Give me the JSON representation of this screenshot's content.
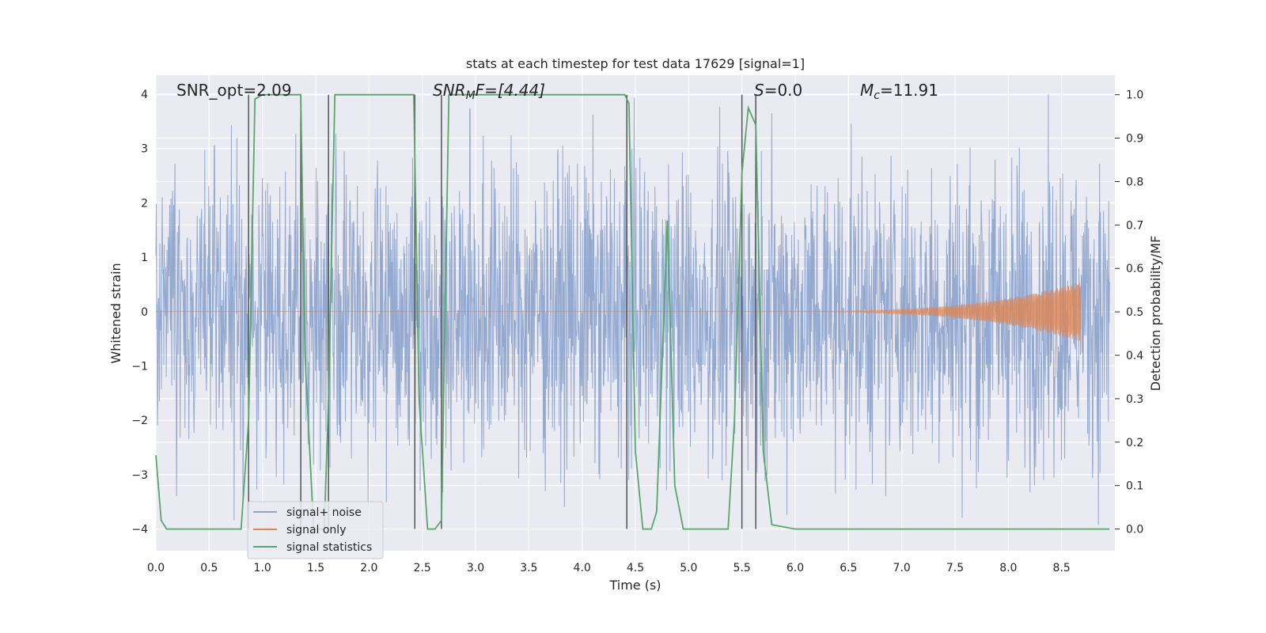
{
  "chart_data": {
    "type": "line",
    "title": "stats at each timestep for test data 17629 [signal=1]",
    "xlabel": "Time (s)",
    "ylabel_left": "Whitened strain",
    "ylabel_right": "Detection probability/MF",
    "xlim": [
      0.0,
      9.0
    ],
    "ylim_left": [
      -4.4,
      4.35
    ],
    "ylim_right": [
      -0.05,
      1.045
    ],
    "grid": true,
    "legend_position": "lower-left",
    "x_ticks": [
      "0.0",
      "0.5",
      "1.0",
      "1.5",
      "2.0",
      "2.5",
      "3.0",
      "3.5",
      "4.0",
      "4.5",
      "5.0",
      "5.5",
      "6.0",
      "6.5",
      "7.0",
      "7.5",
      "8.0",
      "8.5"
    ],
    "y_left_ticks": [
      "4",
      "3",
      "2",
      "1",
      "0",
      "−1",
      "−2",
      "−3",
      "−4"
    ],
    "y_right_ticks": [
      "1.0",
      "0.9",
      "0.8",
      "0.7",
      "0.6",
      "0.5",
      "0.4",
      "0.3",
      "0.2",
      "0.1",
      "0.0"
    ],
    "annotations": {
      "snr_opt": "SNR_opt=2.09",
      "snr_mf_main": "SNR",
      "snr_mf_sub": "M",
      "snr_mf_rest": "F=[4.44]",
      "s_label": "S",
      "s_value": "=0.0",
      "mc_main": "M",
      "mc_sub": "c",
      "mc_value": "=11.91"
    },
    "legend": [
      "signal+ noise",
      "signal only",
      "signal statistics"
    ],
    "colors": {
      "noise": "#8fa5cd",
      "signal": "#dd8452",
      "statistic": "#55a868",
      "vline": "#555555",
      "axes_bg": "#eaeaf2",
      "grid": "#ffffff"
    },
    "noise_envelope": {
      "x_start": 0.0,
      "x_end": 8.95,
      "typical_amplitude": 2.2,
      "peak_amplitude": 4.0
    },
    "signal_only": {
      "x_start": 5.6,
      "x_end": 8.68,
      "max_amplitude": 0.55
    },
    "vertical_lines_x": [
      0.87,
      1.36,
      1.62,
      2.43,
      2.68,
      4.42,
      5.5,
      5.63
    ],
    "series": [
      {
        "name": "signal statistics",
        "axis": "right",
        "x": [
          0.0,
          0.05,
          0.1,
          0.5,
          0.8,
          0.87,
          0.93,
          1.0,
          1.2,
          1.36,
          1.4,
          1.48,
          1.58,
          1.62,
          1.68,
          1.75,
          2.0,
          2.42,
          2.47,
          2.55,
          2.62,
          2.68,
          2.75,
          3.0,
          4.0,
          4.4,
          4.44,
          4.5,
          4.57,
          4.65,
          4.7,
          4.8,
          4.87,
          4.95,
          5.0,
          5.3,
          5.37,
          5.43,
          5.5,
          5.56,
          5.63,
          5.7,
          5.78,
          6.0,
          8.95
        ],
        "y": [
          0.17,
          0.02,
          0.0,
          0.0,
          0.0,
          0.25,
          0.99,
          1.0,
          1.0,
          1.0,
          0.4,
          0.0,
          0.0,
          0.3,
          1.0,
          1.0,
          1.0,
          1.0,
          0.3,
          0.0,
          0.0,
          0.02,
          1.0,
          1.0,
          1.0,
          1.0,
          0.98,
          0.18,
          0.0,
          0.0,
          0.04,
          0.71,
          0.1,
          0.0,
          0.0,
          0.0,
          0.0,
          0.25,
          0.82,
          0.97,
          0.93,
          0.18,
          0.01,
          0.0,
          0.0
        ]
      }
    ]
  }
}
